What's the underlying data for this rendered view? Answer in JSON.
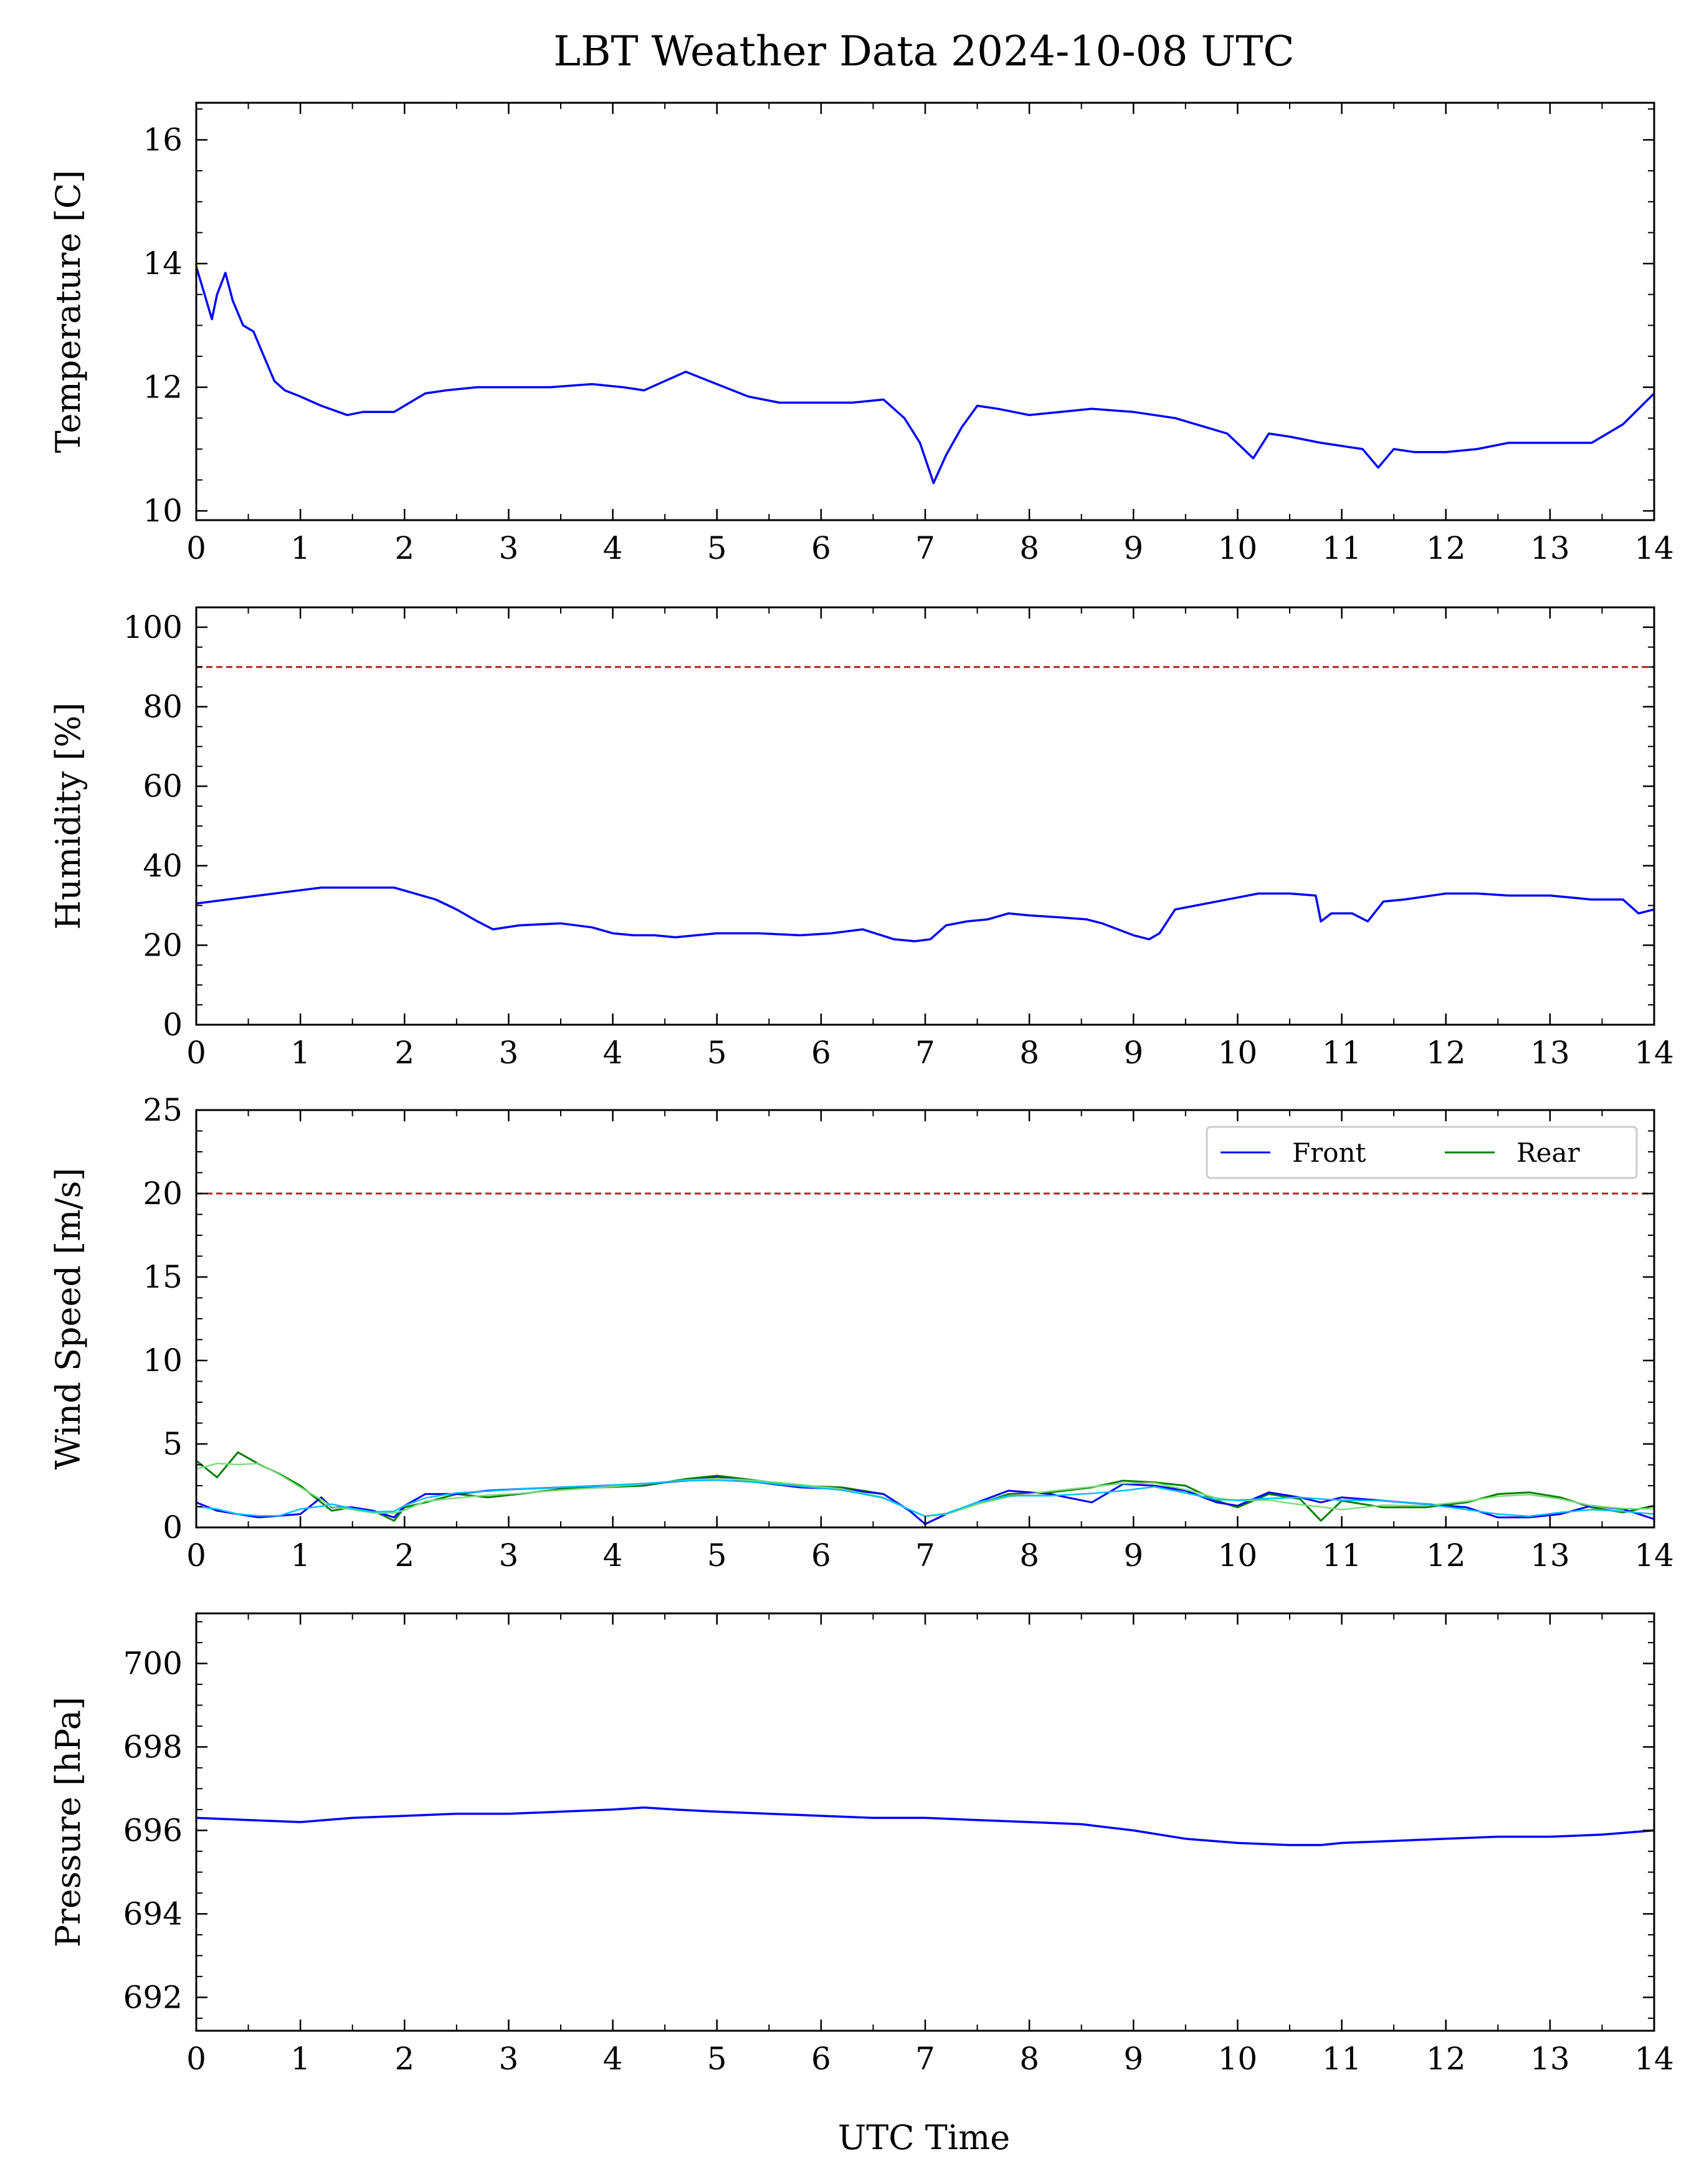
{
  "figure": {
    "title": "LBT Weather Data 2024-10-08 UTC",
    "xlabel": "UTC Time"
  },
  "colors": {
    "front": "#0000ff",
    "rear": "#008000",
    "front_smooth": "#00bfff",
    "rear_smooth": "#7fdc7f",
    "limit": "#b22222"
  },
  "chart_data": [
    {
      "type": "line",
      "ylabel": "Temperature [C]",
      "xlim": [
        0,
        14
      ],
      "ylim": [
        9.85,
        16.6
      ],
      "yticks": [
        10,
        12,
        14,
        16
      ],
      "xticks": [
        0,
        1,
        2,
        3,
        4,
        5,
        6,
        7,
        8,
        9,
        10,
        11,
        12,
        13,
        14
      ],
      "grid": false,
      "series": [
        {
          "x": [
            0,
            0.08,
            0.15,
            0.2,
            0.28,
            0.35,
            0.45,
            0.55,
            0.65,
            0.75,
            0.85,
            1.0,
            1.2,
            1.45,
            1.6,
            1.9,
            2.05,
            2.2,
            2.4,
            2.7,
            3.0,
            3.4,
            3.8,
            4.1,
            4.3,
            4.5,
            4.7,
            5.0,
            5.3,
            5.6,
            6.0,
            6.3,
            6.6,
            6.8,
            6.95,
            7.08,
            7.2,
            7.35,
            7.5,
            7.7,
            8.0,
            8.3,
            8.6,
            9.0,
            9.4,
            9.7,
            9.9,
            10.15,
            10.3,
            10.5,
            10.8,
            11.0,
            11.2,
            11.35,
            11.5,
            11.7,
            12.0,
            12.3,
            12.6,
            13.0,
            13.4,
            13.7,
            14.0
          ],
          "values": [
            13.95,
            13.5,
            13.1,
            13.5,
            13.85,
            13.4,
            13.0,
            12.9,
            12.5,
            12.1,
            11.95,
            11.85,
            11.7,
            11.55,
            11.6,
            11.6,
            11.75,
            11.9,
            11.95,
            12.0,
            12.0,
            12.0,
            12.05,
            12.0,
            11.95,
            12.1,
            12.25,
            12.05,
            11.85,
            11.75,
            11.75,
            11.75,
            11.8,
            11.5,
            11.1,
            10.45,
            10.9,
            11.35,
            11.7,
            11.65,
            11.55,
            11.6,
            11.65,
            11.6,
            11.5,
            11.35,
            11.25,
            10.85,
            11.25,
            11.2,
            11.1,
            11.05,
            11.0,
            10.7,
            11.0,
            10.95,
            10.95,
            11.0,
            11.1,
            11.1,
            11.1,
            11.4,
            11.9
          ]
        }
      ]
    },
    {
      "type": "line",
      "ylabel": "Humidity [%]",
      "xlim": [
        0,
        14
      ],
      "ylim": [
        0,
        105
      ],
      "yticks": [
        0,
        20,
        40,
        60,
        80,
        100
      ],
      "xticks": [
        0,
        1,
        2,
        3,
        4,
        5,
        6,
        7,
        8,
        9,
        10,
        11,
        12,
        13,
        14
      ],
      "grid": false,
      "limit_line": 90,
      "series": [
        {
          "x": [
            0,
            0.3,
            0.6,
            0.9,
            1.2,
            1.5,
            1.9,
            2.1,
            2.3,
            2.5,
            2.7,
            2.85,
            3.1,
            3.5,
            3.8,
            4.0,
            4.2,
            4.4,
            4.6,
            4.8,
            5.0,
            5.4,
            5.8,
            6.1,
            6.4,
            6.7,
            6.9,
            7.05,
            7.2,
            7.4,
            7.6,
            7.8,
            8.0,
            8.3,
            8.55,
            8.7,
            8.85,
            9.0,
            9.15,
            9.25,
            9.4,
            9.6,
            9.8,
            10.0,
            10.2,
            10.5,
            10.75,
            10.8,
            10.9,
            11.1,
            11.25,
            11.4,
            11.6,
            12.0,
            12.3,
            12.6,
            13.0,
            13.4,
            13.7,
            13.85,
            14.0
          ],
          "values": [
            30.5,
            31.5,
            32.5,
            33.5,
            34.5,
            34.5,
            34.5,
            33,
            31.5,
            29,
            26,
            24,
            25,
            25.5,
            24.5,
            23,
            22.5,
            22.5,
            22,
            22.5,
            23,
            23,
            22.5,
            23,
            24,
            21.5,
            21,
            21.5,
            25,
            26,
            26.5,
            28,
            27.5,
            27,
            26.5,
            25.5,
            24,
            22.5,
            21.5,
            23,
            29,
            30,
            31,
            32,
            33,
            33,
            32.5,
            26,
            28,
            28,
            26,
            31,
            31.5,
            33,
            33,
            32.5,
            32.5,
            31.5,
            31.5,
            28,
            29
          ]
        }
      ]
    },
    {
      "type": "line",
      "ylabel": "Wind Speed [m/s]",
      "xlim": [
        0,
        14
      ],
      "ylim": [
        0,
        25
      ],
      "yticks": [
        0,
        5,
        10,
        15,
        20,
        25
      ],
      "xticks": [
        0,
        1,
        2,
        3,
        4,
        5,
        6,
        7,
        8,
        9,
        10,
        11,
        12,
        13,
        14
      ],
      "grid": false,
      "limit_line": 20,
      "legend_position": "top-right",
      "legend_ncol": 2,
      "series": [
        {
          "name": "Front",
          "x": [
            0,
            0.2,
            0.4,
            0.6,
            0.8,
            1.0,
            1.2,
            1.3,
            1.5,
            1.7,
            1.9,
            2.0,
            2.2,
            2.5,
            2.8,
            3.1,
            3.5,
            3.9,
            4.3,
            4.7,
            5.0,
            5.4,
            5.8,
            6.2,
            6.6,
            6.85,
            7.0,
            7.2,
            7.5,
            7.8,
            8.2,
            8.6,
            8.9,
            9.2,
            9.5,
            9.8,
            10.0,
            10.3,
            10.6,
            10.8,
            11.0,
            11.4,
            11.8,
            12.2,
            12.5,
            12.8,
            13.1,
            13.4,
            13.7,
            14.0
          ],
          "values": [
            1.5,
            1.0,
            0.8,
            0.6,
            0.7,
            0.8,
            1.8,
            1.2,
            1.2,
            1.0,
            0.6,
            1.3,
            2.0,
            2.0,
            2.2,
            2.3,
            2.4,
            2.5,
            2.6,
            2.8,
            3.0,
            2.7,
            2.4,
            2.3,
            2.0,
            1.0,
            0.2,
            0.8,
            1.5,
            2.2,
            2.0,
            1.5,
            2.6,
            2.5,
            2.2,
            1.5,
            1.3,
            2.1,
            1.8,
            1.5,
            1.8,
            1.6,
            1.4,
            1.2,
            0.6,
            0.6,
            0.8,
            1.3,
            1.1,
            0.5
          ]
        },
        {
          "name": "Rear",
          "x": [
            0,
            0.2,
            0.4,
            0.6,
            0.8,
            1.0,
            1.2,
            1.3,
            1.5,
            1.7,
            1.9,
            2.0,
            2.2,
            2.5,
            2.8,
            3.1,
            3.5,
            3.9,
            4.3,
            4.7,
            5.0,
            5.4,
            5.8,
            6.2,
            6.6,
            6.85,
            7.0,
            7.2,
            7.5,
            7.8,
            8.2,
            8.6,
            8.9,
            9.2,
            9.5,
            9.8,
            10.0,
            10.3,
            10.6,
            10.8,
            11.0,
            11.4,
            11.8,
            12.2,
            12.5,
            12.8,
            13.1,
            13.4,
            13.7,
            14.0
          ],
          "values": [
            4.0,
            3.0,
            4.5,
            3.8,
            3.2,
            2.5,
            1.5,
            1.0,
            1.2,
            1.0,
            0.4,
            1.2,
            1.5,
            2.0,
            1.8,
            2.0,
            2.3,
            2.4,
            2.5,
            2.9,
            3.1,
            2.8,
            2.5,
            2.4,
            2.0,
            1.0,
            0.2,
            0.8,
            1.4,
            2.0,
            2.1,
            2.4,
            2.8,
            2.7,
            2.5,
            1.6,
            1.2,
            2.0,
            1.7,
            0.4,
            1.6,
            1.2,
            1.2,
            1.5,
            2.0,
            2.1,
            1.8,
            1.2,
            0.9,
            1.3
          ]
        }
      ]
    },
    {
      "type": "line",
      "ylabel": "Pressure [hPa]",
      "xlim": [
        0,
        14
      ],
      "ylim": [
        691.2,
        701.2
      ],
      "yticks": [
        692,
        694,
        696,
        698,
        700
      ],
      "xticks": [
        0,
        1,
        2,
        3,
        4,
        5,
        6,
        7,
        8,
        9,
        10,
        11,
        12,
        13,
        14
      ],
      "grid": false,
      "series": [
        {
          "x": [
            0,
            0.5,
            1.0,
            1.5,
            2.0,
            2.5,
            3.0,
            3.5,
            4.0,
            4.3,
            4.6,
            5.0,
            5.5,
            6.0,
            6.5,
            7.0,
            7.5,
            8.0,
            8.5,
            9.0,
            9.5,
            10.0,
            10.5,
            10.8,
            11.0,
            11.5,
            12.0,
            12.5,
            13.0,
            13.5,
            14.0
          ],
          "values": [
            696.3,
            696.25,
            696.2,
            696.3,
            696.35,
            696.4,
            696.4,
            696.45,
            696.5,
            696.55,
            696.5,
            696.45,
            696.4,
            696.35,
            696.3,
            696.3,
            696.25,
            696.2,
            696.15,
            696.0,
            695.8,
            695.7,
            695.65,
            695.65,
            695.7,
            695.75,
            695.8,
            695.85,
            695.85,
            695.9,
            696.0
          ]
        }
      ]
    }
  ]
}
